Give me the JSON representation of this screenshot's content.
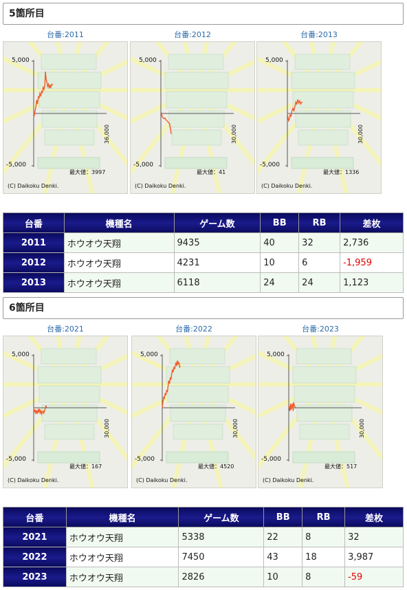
{
  "sections": [
    {
      "title": "5箇所目",
      "charts": [
        {
          "label": "台番:2011",
          "y_top": "5,000",
          "y_bottom": "-5,000",
          "x_max": "36,000",
          "max_text": "最大値：3997",
          "copyright": "(C) Daikoku Denki.",
          "games_max": 36000,
          "curve": [
            [
              0,
              0
            ],
            [
              300,
              -150
            ],
            [
              700,
              300
            ],
            [
              1100,
              600
            ],
            [
              1500,
              1300
            ],
            [
              1900,
              900
            ],
            [
              2300,
              1600
            ],
            [
              2700,
              1500
            ],
            [
              3100,
              1900
            ],
            [
              3500,
              1700
            ],
            [
              3900,
              2100
            ],
            [
              4300,
              2000
            ],
            [
              4700,
              2500
            ],
            [
              5100,
              2300
            ],
            [
              5500,
              2700
            ],
            [
              5800,
              3997
            ],
            [
              6100,
              3300
            ],
            [
              6500,
              3000
            ],
            [
              6900,
              2600
            ],
            [
              7300,
              2800
            ],
            [
              7700,
              2400
            ],
            [
              8100,
              2700
            ],
            [
              8500,
              2500
            ],
            [
              9000,
              2800
            ],
            [
              9435,
              2736
            ]
          ]
        },
        {
          "label": "台番:2012",
          "y_top": "5,000",
          "y_bottom": "-5,000",
          "x_max": "30,000",
          "max_text": "最大値：41",
          "copyright": "(C) Daikoku Denki.",
          "games_max": 30000,
          "curve": [
            [
              0,
              0
            ],
            [
              200,
              41
            ],
            [
              500,
              -300
            ],
            [
              900,
              -400
            ],
            [
              1300,
              -500
            ],
            [
              1700,
              -450
            ],
            [
              2100,
              -600
            ],
            [
              2500,
              -700
            ],
            [
              2900,
              -800
            ],
            [
              3300,
              -900
            ],
            [
              3600,
              -1000
            ],
            [
              3900,
              -1400
            ],
            [
              4231,
              -1959
            ]
          ]
        },
        {
          "label": "台番:2013",
          "y_top": "5,000",
          "y_bottom": "-5,000",
          "x_max": "30,000",
          "max_text": "最大値：1336",
          "copyright": "(C) Daikoku Denki.",
          "games_max": 30000,
          "curve": [
            [
              0,
              0
            ],
            [
              200,
              -300
            ],
            [
              500,
              -700
            ],
            [
              900,
              -500
            ],
            [
              1200,
              -100
            ],
            [
              1500,
              -300
            ],
            [
              1900,
              300
            ],
            [
              2300,
              500
            ],
            [
              2700,
              200
            ],
            [
              3100,
              700
            ],
            [
              3500,
              1100
            ],
            [
              3900,
              900
            ],
            [
              4300,
              1336
            ],
            [
              4700,
              1000
            ],
            [
              5100,
              1200
            ],
            [
              5500,
              900
            ],
            [
              6118,
              1123
            ]
          ]
        }
      ],
      "table": {
        "headers": [
          "台番",
          "機種名",
          "ゲーム数",
          "BB",
          "RB",
          "差枚"
        ],
        "rows": [
          [
            "2011",
            "ホウオウ天翔",
            "9435",
            "40",
            "32",
            "2,736"
          ],
          [
            "2012",
            "ホウオウ天翔",
            "4231",
            "10",
            "6",
            "-1,959"
          ],
          [
            "2013",
            "ホウオウ天翔",
            "6118",
            "24",
            "24",
            "1,123"
          ]
        ]
      }
    },
    {
      "title": "6箇所目",
      "charts": [
        {
          "label": "台番:2021",
          "y_top": "5,000",
          "y_bottom": "-5,000",
          "x_max": "30,000",
          "max_text": "最大値：167",
          "copyright": "(C) Daikoku Denki.",
          "games_max": 30000,
          "curve": [
            [
              0,
              0
            ],
            [
              300,
              -400
            ],
            [
              600,
              -200
            ],
            [
              900,
              -600
            ],
            [
              1200,
              -300
            ],
            [
              1500,
              -500
            ],
            [
              1800,
              -200
            ],
            [
              2100,
              -400
            ],
            [
              2400,
              -100
            ],
            [
              2700,
              -500
            ],
            [
              3000,
              -300
            ],
            [
              3300,
              -600
            ],
            [
              3600,
              -400
            ],
            [
              3900,
              -300
            ],
            [
              4200,
              -500
            ],
            [
              4600,
              -200
            ],
            [
              5000,
              167
            ],
            [
              5338,
              32
            ]
          ]
        },
        {
          "label": "台番:2022",
          "y_top": "5,000",
          "y_bottom": "-5,000",
          "x_max": "30,000",
          "max_text": "最大値：4520",
          "copyright": "(C) Daikoku Denki.",
          "games_max": 30000,
          "curve": [
            [
              0,
              0
            ],
            [
              300,
              600
            ],
            [
              600,
              1000
            ],
            [
              900,
              900
            ],
            [
              1200,
              1400
            ],
            [
              1500,
              1200
            ],
            [
              1800,
              1700
            ],
            [
              2100,
              1500
            ],
            [
              2400,
              2100
            ],
            [
              2700,
              2600
            ],
            [
              3000,
              2300
            ],
            [
              3300,
              2900
            ],
            [
              3600,
              2700
            ],
            [
              3900,
              3300
            ],
            [
              4200,
              3600
            ],
            [
              4500,
              3400
            ],
            [
              4800,
              3900
            ],
            [
              5100,
              3700
            ],
            [
              5400,
              4100
            ],
            [
              5700,
              4300
            ],
            [
              6000,
              4000
            ],
            [
              6300,
              4520
            ],
            [
              6600,
              4200
            ],
            [
              6900,
              4300
            ],
            [
              7200,
              3900
            ],
            [
              7450,
              3987
            ]
          ]
        },
        {
          "label": "台番:2023",
          "y_top": "5,000",
          "y_bottom": "-5,000",
          "x_max": "30,000",
          "max_text": "最大値：517",
          "copyright": "(C) Daikoku Denki.",
          "games_max": 30000,
          "curve": [
            [
              0,
              0
            ],
            [
              200,
              200
            ],
            [
              400,
              -300
            ],
            [
              600,
              -100
            ],
            [
              800,
              400
            ],
            [
              1000,
              -200
            ],
            [
              1200,
              300
            ],
            [
              1400,
              100
            ],
            [
              1600,
              400
            ],
            [
              1800,
              -300
            ],
            [
              2000,
              517
            ],
            [
              2200,
              300
            ],
            [
              2400,
              200
            ],
            [
              2600,
              100
            ],
            [
              2826,
              -59
            ]
          ]
        }
      ],
      "table": {
        "headers": [
          "台番",
          "機種名",
          "ゲーム数",
          "BB",
          "RB",
          "差枚"
        ],
        "rows": [
          [
            "2021",
            "ホウオウ天翔",
            "5338",
            "22",
            "8",
            "32"
          ],
          [
            "2022",
            "ホウオウ天翔",
            "7450",
            "43",
            "18",
            "3,987"
          ],
          [
            "2023",
            "ホウオウ天翔",
            "2826",
            "10",
            "8",
            "-59"
          ]
        ]
      }
    }
  ]
}
